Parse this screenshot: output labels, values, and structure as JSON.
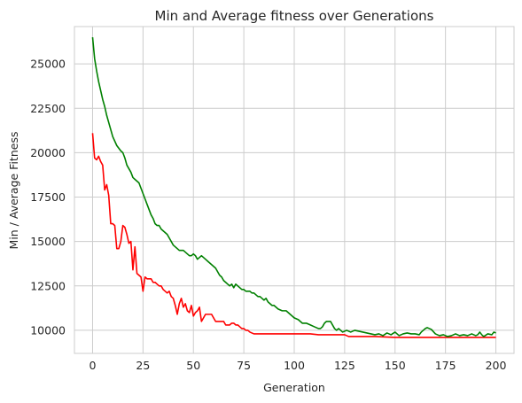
{
  "chart_data": {
    "type": "line",
    "title": "Min and Average fitness over Generations",
    "xlabel": "Generation",
    "ylabel": "Min / Average Fitness",
    "xlim": [
      -9,
      209
    ],
    "ylim": [
      8700,
      27100
    ],
    "grid": true,
    "xticks": [
      0,
      25,
      50,
      75,
      100,
      125,
      150,
      175,
      200
    ],
    "yticks": [
      10000,
      12500,
      15000,
      17500,
      20000,
      22500,
      25000
    ],
    "series": [
      {
        "color": "#ff0000",
        "x": [
          0,
          1,
          2,
          3,
          4,
          5,
          6,
          7,
          8,
          9,
          10,
          11,
          12,
          13,
          14,
          15,
          16,
          17,
          18,
          19,
          20,
          21,
          22,
          23,
          24,
          25,
          26,
          27,
          28,
          29,
          30,
          31,
          32,
          33,
          34,
          35,
          36,
          37,
          38,
          39,
          40,
          41,
          42,
          43,
          44,
          45,
          46,
          47,
          48,
          49,
          50,
          51,
          52,
          53,
          54,
          55,
          56,
          57,
          58,
          59,
          60,
          61,
          62,
          63,
          64,
          65,
          66,
          67,
          68,
          69,
          70,
          71,
          72,
          73,
          74,
          75,
          76,
          77,
          78,
          80,
          85,
          90,
          95,
          100,
          105,
          108,
          112,
          118,
          122,
          125,
          127,
          140,
          150,
          160,
          170,
          180,
          190,
          200
        ],
        "y": [
          21100,
          19700,
          19600,
          19800,
          19500,
          19300,
          17900,
          18200,
          17600,
          16000,
          16000,
          15900,
          14600,
          14600,
          15000,
          15900,
          15800,
          15400,
          14900,
          15000,
          13400,
          14700,
          13200,
          13100,
          13000,
          12200,
          13000,
          12900,
          12900,
          12900,
          12700,
          12700,
          12600,
          12500,
          12500,
          12300,
          12200,
          12100,
          12200,
          11900,
          11800,
          11400,
          10900,
          11500,
          11800,
          11300,
          11500,
          11100,
          11000,
          11400,
          10800,
          11000,
          11100,
          11300,
          10500,
          10700,
          10900,
          10900,
          10900,
          10900,
          10700,
          10500,
          10500,
          10500,
          10500,
          10500,
          10300,
          10300,
          10300,
          10400,
          10400,
          10300,
          10300,
          10200,
          10100,
          10100,
          10000,
          10000,
          9900,
          9800,
          9800,
          9800,
          9800,
          9800,
          9800,
          9800,
          9750,
          9750,
          9750,
          9750,
          9650,
          9650,
          9600,
          9600,
          9600,
          9600,
          9600,
          9600
        ]
      },
      {
        "color": "#008000",
        "x": [
          0,
          1,
          2,
          3,
          4,
          5,
          6,
          7,
          8,
          9,
          10,
          12,
          14,
          15,
          16,
          17,
          18,
          19,
          20,
          21,
          22,
          23,
          24,
          25,
          26,
          27,
          28,
          29,
          30,
          31,
          32,
          33,
          34,
          35,
          36,
          37,
          38,
          39,
          40,
          41,
          42,
          43,
          44,
          45,
          46,
          47,
          48,
          49,
          50,
          51,
          52,
          53,
          54,
          55,
          56,
          57,
          58,
          59,
          60,
          61,
          62,
          63,
          64,
          65,
          66,
          67,
          68,
          69,
          70,
          71,
          72,
          73,
          74,
          75,
          76,
          77,
          78,
          79,
          80,
          81,
          82,
          83,
          84,
          85,
          86,
          87,
          88,
          89,
          90,
          92,
          94,
          96,
          98,
          100,
          102,
          104,
          106,
          108,
          110,
          112,
          113,
          114,
          115,
          116,
          118,
          120,
          121,
          122,
          124,
          126,
          128,
          130,
          132,
          134,
          136,
          138,
          140,
          142,
          144,
          146,
          148,
          150,
          152,
          154,
          156,
          158,
          160,
          162,
          163,
          164,
          165,
          166,
          168,
          170,
          172,
          174,
          176,
          178,
          180,
          182,
          184,
          186,
          188,
          190,
          191,
          192,
          193,
          194,
          196,
          198,
          199,
          200
        ],
        "y": [
          26500,
          25300,
          24600,
          24000,
          23500,
          23000,
          22600,
          22100,
          21700,
          21300,
          20900,
          20400,
          20100,
          20000,
          19700,
          19300,
          19100,
          18900,
          18600,
          18500,
          18400,
          18300,
          18000,
          17700,
          17400,
          17100,
          16800,
          16500,
          16300,
          16000,
          15900,
          15900,
          15700,
          15600,
          15500,
          15400,
          15200,
          15000,
          14800,
          14700,
          14600,
          14500,
          14500,
          14500,
          14400,
          14300,
          14200,
          14200,
          14300,
          14200,
          14000,
          14100,
          14200,
          14100,
          14000,
          13900,
          13800,
          13700,
          13600,
          13500,
          13300,
          13100,
          13000,
          12800,
          12700,
          12600,
          12500,
          12600,
          12400,
          12600,
          12500,
          12400,
          12300,
          12300,
          12200,
          12200,
          12200,
          12100,
          12100,
          12000,
          11900,
          11900,
          11800,
          11700,
          11800,
          11600,
          11500,
          11400,
          11400,
          11200,
          11100,
          11100,
          10900,
          10700,
          10600,
          10400,
          10400,
          10300,
          10200,
          10100,
          10100,
          10200,
          10400,
          10500,
          10500,
          10100,
          10000,
          10100,
          9900,
          10000,
          9900,
          10000,
          9950,
          9900,
          9850,
          9800,
          9750,
          9800,
          9700,
          9850,
          9750,
          9900,
          9700,
          9800,
          9850,
          9800,
          9800,
          9750,
          9900,
          10000,
          10100,
          10150,
          10050,
          9800,
          9700,
          9750,
          9650,
          9700,
          9800,
          9700,
          9750,
          9700,
          9800,
          9700,
          9750,
          9900,
          9750,
          9650,
          9800,
          9750,
          9900,
          9850
        ]
      }
    ]
  }
}
